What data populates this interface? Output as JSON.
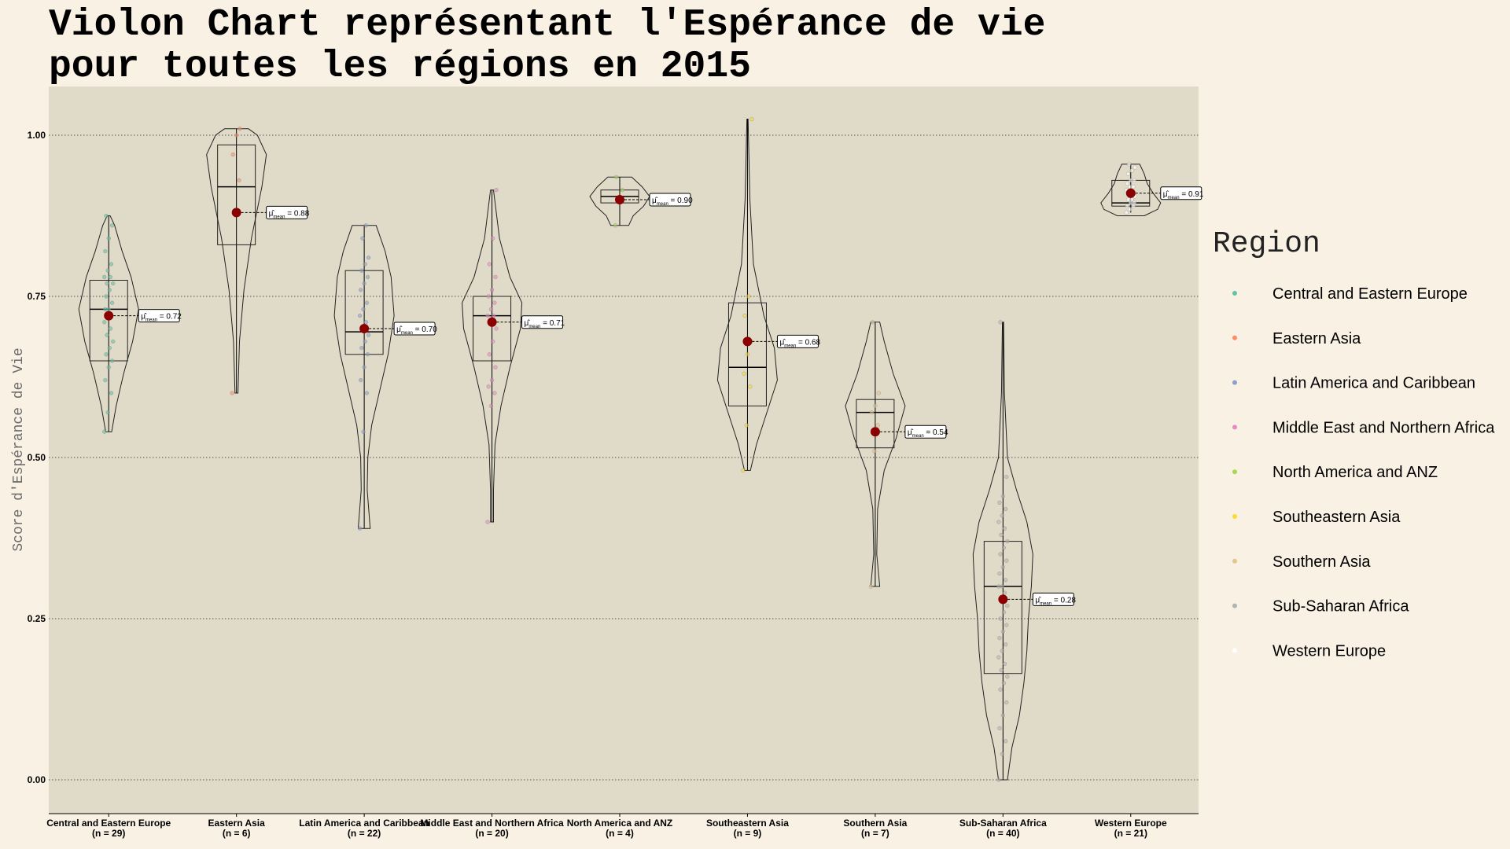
{
  "chart_data": {
    "type": "violin",
    "title_lines": [
      "Violon Chart représentant l'Espérance de vie",
      "pour toutes les régions  en  2015"
    ],
    "xlabel": "",
    "ylabel": "Score d'Espérance de Vie",
    "ylim": [
      -0.05,
      1.08
    ],
    "yticks": [
      0.0,
      0.25,
      0.5,
      0.75,
      1.0
    ],
    "ytick_labels": [
      "0.00",
      "0.25",
      "0.50",
      "0.75",
      "1.00"
    ],
    "grid": "horizontal-dotted",
    "legend": {
      "title": "Region",
      "placement": "right"
    },
    "mean_prefix": "μ̂",
    "mean_sub": "mean",
    "series": [
      {
        "name": "Central and Eastern Europe",
        "n_label": "(n = 29)",
        "color": "#66c2a5",
        "min": 0.54,
        "q1": 0.65,
        "median": 0.73,
        "q3": 0.775,
        "max": 0.875,
        "mean": 0.72,
        "mean_label": "0.72",
        "density": [
          [
            0.54,
            0.1
          ],
          [
            0.58,
            0.25
          ],
          [
            0.63,
            0.5
          ],
          [
            0.68,
            0.8
          ],
          [
            0.73,
            1.0
          ],
          [
            0.78,
            0.75
          ],
          [
            0.82,
            0.45
          ],
          [
            0.86,
            0.2
          ],
          [
            0.875,
            0.05
          ]
        ],
        "points": [
          0.54,
          0.57,
          0.6,
          0.62,
          0.64,
          0.65,
          0.66,
          0.67,
          0.68,
          0.69,
          0.7,
          0.71,
          0.72,
          0.72,
          0.73,
          0.73,
          0.74,
          0.75,
          0.76,
          0.77,
          0.77,
          0.78,
          0.78,
          0.79,
          0.8,
          0.82,
          0.84,
          0.86,
          0.875
        ]
      },
      {
        "name": "Eastern Asia",
        "n_label": "(n = 6)",
        "color": "#fc8d62",
        "min": 0.6,
        "q1": 0.83,
        "median": 0.92,
        "q3": 0.985,
        "max": 1.01,
        "mean": 0.88,
        "mean_label": "0.88",
        "density": [
          [
            0.6,
            0.05
          ],
          [
            0.68,
            0.1
          ],
          [
            0.76,
            0.25
          ],
          [
            0.84,
            0.5
          ],
          [
            0.92,
            0.85
          ],
          [
            0.97,
            1.0
          ],
          [
            1.0,
            0.7
          ],
          [
            1.01,
            0.4
          ]
        ],
        "points": [
          0.6,
          0.88,
          0.93,
          0.97,
          1.0,
          1.01
        ]
      },
      {
        "name": "Latin America and Caribbean",
        "n_label": "(n = 22)",
        "color": "#8da0cb",
        "min": 0.39,
        "q1": 0.66,
        "median": 0.695,
        "q3": 0.79,
        "max": 0.86,
        "mean": 0.7,
        "mean_label": "0.70",
        "density": [
          [
            0.39,
            0.2
          ],
          [
            0.45,
            0.1
          ],
          [
            0.5,
            0.12
          ],
          [
            0.55,
            0.25
          ],
          [
            0.6,
            0.5
          ],
          [
            0.66,
            0.8
          ],
          [
            0.72,
            1.0
          ],
          [
            0.78,
            0.9
          ],
          [
            0.82,
            0.7
          ],
          [
            0.86,
            0.4
          ]
        ],
        "points": [
          0.39,
          0.54,
          0.6,
          0.62,
          0.64,
          0.66,
          0.67,
          0.68,
          0.69,
          0.7,
          0.71,
          0.72,
          0.73,
          0.74,
          0.76,
          0.77,
          0.78,
          0.79,
          0.8,
          0.81,
          0.84,
          0.86
        ]
      },
      {
        "name": "Middle East and Northern Africa",
        "n_label": "(n = 20)",
        "color": "#e78ac3",
        "min": 0.4,
        "q1": 0.65,
        "median": 0.72,
        "q3": 0.75,
        "max": 0.915,
        "mean": 0.71,
        "mean_label": "0.71",
        "density": [
          [
            0.4,
            0.05
          ],
          [
            0.45,
            0.05
          ],
          [
            0.52,
            0.1
          ],
          [
            0.58,
            0.3
          ],
          [
            0.64,
            0.6
          ],
          [
            0.7,
            0.95
          ],
          [
            0.74,
            1.0
          ],
          [
            0.78,
            0.6
          ],
          [
            0.84,
            0.25
          ],
          [
            0.915,
            0.05
          ]
        ],
        "points": [
          0.4,
          0.58,
          0.6,
          0.61,
          0.62,
          0.64,
          0.66,
          0.68,
          0.7,
          0.71,
          0.72,
          0.72,
          0.73,
          0.74,
          0.75,
          0.76,
          0.78,
          0.8,
          0.84,
          0.915
        ]
      },
      {
        "name": "North America and ANZ",
        "n_label": "(n = 4)",
        "color": "#a6d854",
        "min": 0.86,
        "q1": 0.895,
        "median": 0.905,
        "q3": 0.915,
        "max": 0.935,
        "mean": 0.9,
        "mean_label": "0.90",
        "density": [
          [
            0.86,
            0.3
          ],
          [
            0.875,
            0.45
          ],
          [
            0.89,
            0.8
          ],
          [
            0.905,
            1.0
          ],
          [
            0.92,
            0.75
          ],
          [
            0.935,
            0.4
          ]
        ],
        "points": [
          0.86,
          0.9,
          0.915,
          0.935
        ]
      },
      {
        "name": "Southeastern Asia",
        "n_label": "(n = 9)",
        "color": "#ffd92f",
        "min": 0.48,
        "q1": 0.58,
        "median": 0.64,
        "q3": 0.74,
        "max": 1.025,
        "mean": 0.68,
        "mean_label": "0.68",
        "density": [
          [
            0.48,
            0.1
          ],
          [
            0.52,
            0.3
          ],
          [
            0.57,
            0.65
          ],
          [
            0.62,
            1.0
          ],
          [
            0.67,
            0.9
          ],
          [
            0.72,
            0.55
          ],
          [
            0.8,
            0.2
          ],
          [
            0.9,
            0.08
          ],
          [
            1.025,
            0.02
          ]
        ],
        "points": [
          0.48,
          0.55,
          0.61,
          0.63,
          0.66,
          0.68,
          0.72,
          0.75,
          1.025
        ]
      },
      {
        "name": "Southern Asia",
        "n_label": "(n = 7)",
        "color": "#e5c494",
        "min": 0.3,
        "q1": 0.515,
        "median": 0.57,
        "q3": 0.59,
        "max": 0.71,
        "mean": 0.54,
        "mean_label": "0.54",
        "density": [
          [
            0.3,
            0.15
          ],
          [
            0.35,
            0.05
          ],
          [
            0.42,
            0.08
          ],
          [
            0.48,
            0.3
          ],
          [
            0.53,
            0.7
          ],
          [
            0.58,
            1.0
          ],
          [
            0.63,
            0.6
          ],
          [
            0.68,
            0.3
          ],
          [
            0.71,
            0.15
          ]
        ],
        "points": [
          0.3,
          0.51,
          0.55,
          0.57,
          0.58,
          0.6,
          0.71
        ]
      },
      {
        "name": "Sub-Saharan Africa",
        "n_label": "(n = 40)",
        "color": "#b3b3b3",
        "min": 0.0,
        "q1": 0.165,
        "median": 0.3,
        "q3": 0.37,
        "max": 0.71,
        "mean": 0.28,
        "mean_label": "0.28",
        "density": [
          [
            0.0,
            0.15
          ],
          [
            0.05,
            0.3
          ],
          [
            0.1,
            0.55
          ],
          [
            0.15,
            0.7
          ],
          [
            0.2,
            0.8
          ],
          [
            0.25,
            0.85
          ],
          [
            0.3,
            0.95
          ],
          [
            0.35,
            1.0
          ],
          [
            0.4,
            0.8
          ],
          [
            0.45,
            0.45
          ],
          [
            0.5,
            0.15
          ],
          [
            0.6,
            0.05
          ],
          [
            0.71,
            0.02
          ]
        ],
        "points": [
          0.0,
          0.04,
          0.06,
          0.08,
          0.1,
          0.12,
          0.14,
          0.15,
          0.16,
          0.17,
          0.18,
          0.19,
          0.2,
          0.21,
          0.22,
          0.23,
          0.24,
          0.25,
          0.26,
          0.27,
          0.28,
          0.29,
          0.3,
          0.3,
          0.31,
          0.32,
          0.33,
          0.34,
          0.35,
          0.36,
          0.37,
          0.38,
          0.39,
          0.4,
          0.41,
          0.42,
          0.43,
          0.44,
          0.47,
          0.71
        ]
      },
      {
        "name": "Western Europe",
        "n_label": "(n = 21)",
        "color": "#ffffff",
        "min": 0.88,
        "q1": 0.89,
        "median": 0.895,
        "q3": 0.93,
        "max": 0.955,
        "mean": 0.91,
        "mean_label": "0.91",
        "density": [
          [
            0.875,
            0.45
          ],
          [
            0.885,
            0.9
          ],
          [
            0.895,
            1.0
          ],
          [
            0.91,
            0.75
          ],
          [
            0.925,
            0.55
          ],
          [
            0.94,
            0.45
          ],
          [
            0.955,
            0.3
          ]
        ],
        "points": [
          0.88,
          0.885,
          0.89,
          0.89,
          0.895,
          0.895,
          0.9,
          0.9,
          0.905,
          0.91,
          0.91,
          0.915,
          0.92,
          0.92,
          0.925,
          0.93,
          0.93,
          0.94,
          0.945,
          0.95,
          0.955
        ]
      }
    ]
  }
}
